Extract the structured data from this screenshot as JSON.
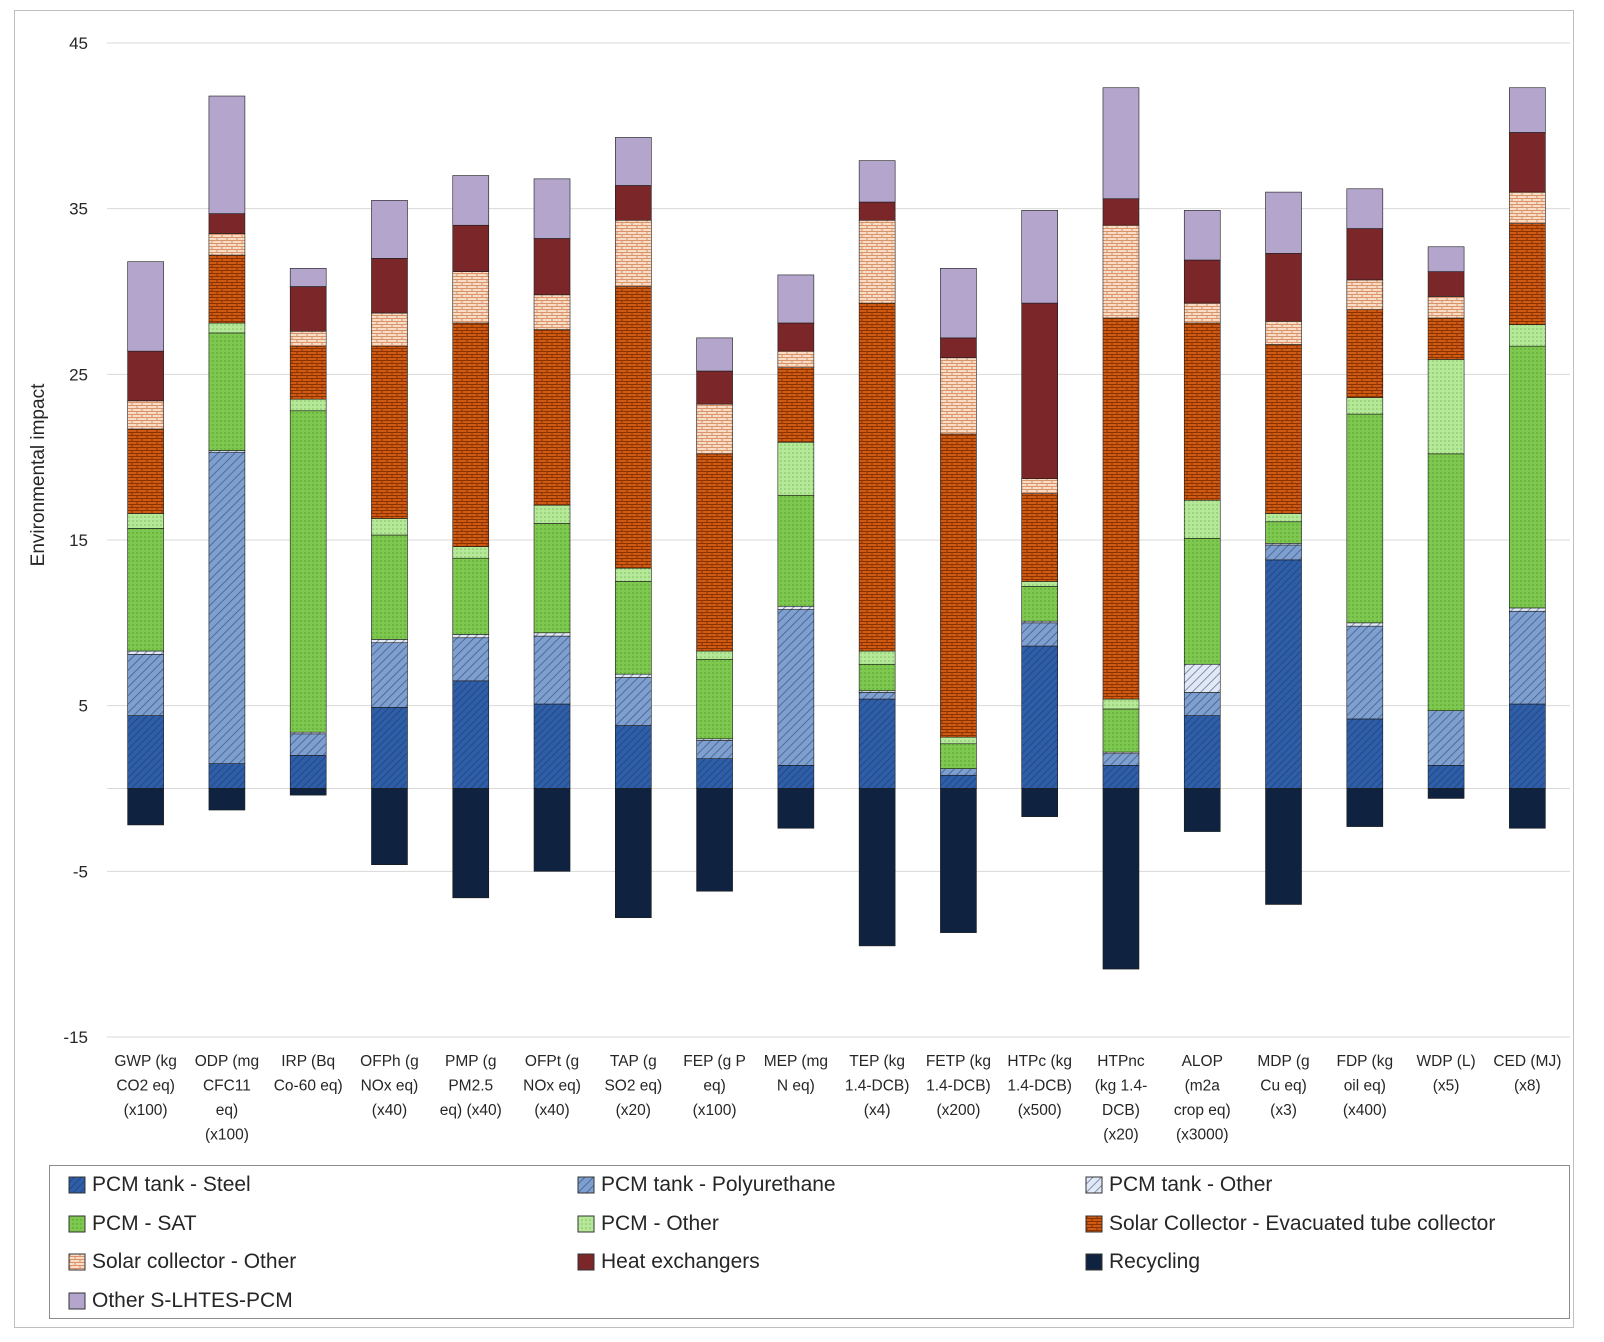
{
  "chart_data": {
    "type": "bar",
    "stacked": true,
    "ylabel": "Environmental impact",
    "xlabel": "",
    "ylim": [
      -15,
      45
    ],
    "yticks": [
      45,
      35,
      25,
      15,
      5,
      -5,
      -15
    ],
    "grid": true,
    "legend_position": "bottom",
    "categories": [
      [
        "GWP (kg",
        "CO2 eq)",
        "(x100)"
      ],
      [
        "ODP (mg",
        "CFC11",
        "eq)",
        "(x100)"
      ],
      [
        "IRP (Bq",
        "Co-60 eq)"
      ],
      [
        "OFPh (g",
        "NOx eq)",
        "(x40)"
      ],
      [
        "PMP (g",
        "PM2.5",
        "eq) (x40)"
      ],
      [
        "OFPt (g",
        "NOx eq)",
        "(x40)"
      ],
      [
        "TAP (g",
        "SO2 eq)",
        "(x20)"
      ],
      [
        "FEP (g P",
        "eq)",
        "(x100)"
      ],
      [
        "MEP (mg",
        "N eq)"
      ],
      [
        "TEP (kg",
        "1.4-DCB)",
        "(x4)"
      ],
      [
        "FETP (kg",
        "1.4-DCB)",
        "(x200)"
      ],
      [
        "HTPc (kg",
        "1.4-DCB)",
        "(x500)"
      ],
      [
        "HTPnc",
        "(kg 1.4-",
        "DCB)",
        "(x20)"
      ],
      [
        "ALOP",
        "(m2a",
        "crop eq)",
        "(x3000)"
      ],
      [
        "MDP (g",
        "Cu eq)",
        "(x3)"
      ],
      [
        "FDP (kg",
        "oil eq)",
        "(x400)"
      ],
      [
        "WDP (L)",
        "(x5)"
      ],
      [
        "CED (MJ)",
        "(x8)"
      ]
    ],
    "series": [
      {
        "name": "PCM tank - Steel",
        "values": [
          4.4,
          1.5,
          2.0,
          4.9,
          6.5,
          5.1,
          3.8,
          1.8,
          1.4,
          5.4,
          0.8,
          8.6,
          1.4,
          4.4,
          13.8,
          4.2,
          1.4,
          5.1
        ]
      },
      {
        "name": "PCM tank - Polyurethane",
        "values": [
          3.7,
          18.8,
          1.3,
          3.9,
          2.6,
          4.1,
          2.9,
          1.1,
          9.4,
          0.4,
          0.4,
          1.4,
          0.7,
          1.4,
          0.9,
          5.6,
          3.3,
          5.6
        ]
      },
      {
        "name": "PCM tank - Other",
        "values": [
          0.2,
          0.1,
          0.1,
          0.2,
          0.2,
          0.2,
          0.2,
          0.1,
          0.2,
          0.1,
          0.0,
          0.1,
          0.1,
          1.7,
          0.1,
          0.2,
          0.0,
          0.2
        ]
      },
      {
        "name": "PCM - SAT",
        "values": [
          7.4,
          7.1,
          19.4,
          6.3,
          4.6,
          6.6,
          5.6,
          4.8,
          6.7,
          1.6,
          1.5,
          2.1,
          2.6,
          7.6,
          1.3,
          12.6,
          15.5,
          15.8
        ]
      },
      {
        "name": "PCM - Other",
        "values": [
          0.9,
          0.6,
          0.7,
          1.0,
          0.7,
          1.1,
          0.8,
          0.5,
          3.2,
          0.8,
          0.4,
          0.3,
          0.6,
          2.3,
          0.5,
          1.0,
          5.7,
          1.3
        ]
      },
      {
        "name": "Solar Collector - Evacuated tube collector",
        "values": [
          5.1,
          4.1,
          3.2,
          10.4,
          13.5,
          10.6,
          17.0,
          11.9,
          4.5,
          21.0,
          18.3,
          5.3,
          23.0,
          10.7,
          10.2,
          5.3,
          2.5,
          6.1
        ]
      },
      {
        "name": "Solar collector - Other",
        "values": [
          1.7,
          1.3,
          0.9,
          2.0,
          3.1,
          2.1,
          4.0,
          3.0,
          1.0,
          5.0,
          4.6,
          0.9,
          5.6,
          1.2,
          1.4,
          1.8,
          1.3,
          1.9
        ]
      },
      {
        "name": "Heat exchangers",
        "values": [
          3.0,
          1.2,
          2.7,
          3.3,
          2.8,
          3.4,
          2.1,
          2.0,
          1.7,
          1.1,
          1.2,
          10.6,
          1.6,
          2.6,
          4.1,
          3.1,
          1.5,
          3.6
        ]
      },
      {
        "name": "Other S-LHTES-PCM",
        "values": [
          5.4,
          7.1,
          1.1,
          3.5,
          3.0,
          3.6,
          2.9,
          2.0,
          2.9,
          2.5,
          4.2,
          5.6,
          6.7,
          3.0,
          3.7,
          2.4,
          1.5,
          2.7
        ]
      },
      {
        "name": "Recycling",
        "values": [
          -2.2,
          -1.3,
          -0.4,
          -4.6,
          -6.6,
          -5.0,
          -7.8,
          -6.2,
          -2.4,
          -9.5,
          -8.7,
          -1.7,
          -10.9,
          -2.6,
          -7.0,
          -2.3,
          -0.6,
          -2.4
        ]
      }
    ]
  },
  "legend": [
    {
      "label": "PCM tank - Steel",
      "fill": "#2f5ea8",
      "pattern": "hatch-fine"
    },
    {
      "label": "PCM tank - Polyurethane",
      "fill": "#7f9fcf",
      "pattern": "hatch-wide"
    },
    {
      "label": "PCM tank - Other",
      "fill": "#c3d2e8",
      "pattern": "hatch-light"
    },
    {
      "label": "PCM - SAT",
      "fill": "#7ec850",
      "pattern": "dots"
    },
    {
      "label": "PCM - Other",
      "fill": "#b6e89a",
      "pattern": "dots-light"
    },
    {
      "label": "Solar Collector - Evacuated tube collector",
      "fill": "#cf5a14",
      "pattern": "brick"
    },
    {
      "label": "Solar collector - Other",
      "fill": "#f2c8aa",
      "pattern": "brick-light"
    },
    {
      "label": "Heat exchangers",
      "fill": "#7b2628",
      "pattern": "none"
    },
    {
      "label": "Recycling",
      "fill": "#0f2340",
      "pattern": "none"
    },
    {
      "label": "Other S-LHTES-PCM",
      "fill": "#b4a5cc",
      "pattern": "none"
    }
  ]
}
